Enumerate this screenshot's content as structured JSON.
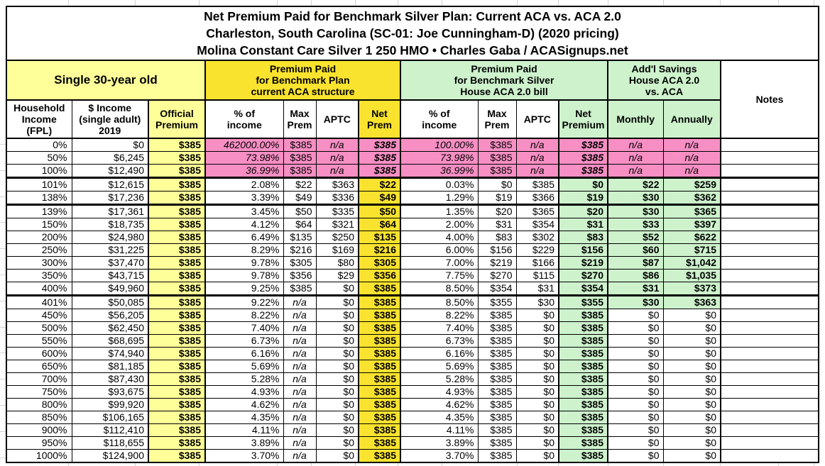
{
  "title": {
    "line1": "Net Premium Paid for Benchmark Silver Plan: Current ACA vs. ACA 2.0",
    "line2": "Charleston, South Carolina (SC-01: Joe Cunningham-D) (2020 pricing)",
    "line3": "Molina Constant Care Silver 1 250 HMO • Charles Gaba / ACASignups.net"
  },
  "groups": {
    "subject": "Single 30-year old",
    "aca": "Premium Paid\nfor Benchmark Plan\ncurrent ACA structure",
    "aca2": "Premium Paid\nfor Benchmark Silver\nHouse ACA 2.0 bill",
    "savings": "Add'l Savings\nHouse ACA 2.0\nvs. ACA",
    "notes": "Notes"
  },
  "columns": {
    "fpl": "Household\nIncome\n(FPL)",
    "income": "$ Income\n(single adult)\n2019",
    "official": "Official\nPremium",
    "aca_pct": "% of\nincome",
    "aca_max": "Max\nPrem",
    "aca_aptc": "APTC",
    "aca_net": "Net\nPrem",
    "aca2_pct": "% of\nincome",
    "aca2_max": "Max\nPrem",
    "aca2_aptc": "APTC",
    "aca2_net": "Net\nPremium",
    "monthly": "Monthly",
    "annually": "Annually"
  },
  "colors": {
    "pale_yellow": "#FFFF99",
    "bright_yellow": "#F9E32E",
    "light_green": "#CDF2CC",
    "pink": "#F78FC4",
    "border": "#000000",
    "gridline": "#d4d4d4"
  },
  "table": {
    "rows": [
      {
        "fpl": "0%",
        "inc": "$0",
        "off": "$385",
        "a": [
          "462000.00%",
          "$385",
          "n/a",
          "$385"
        ],
        "b": [
          "100.00%",
          "$385",
          "n/a",
          "$385"
        ],
        "m": "n/a",
        "y": "n/a",
        "pink": true
      },
      {
        "fpl": "50%",
        "inc": "$6,245",
        "off": "$385",
        "a": [
          "73.98%",
          "$385",
          "n/a",
          "$385"
        ],
        "b": [
          "73.98%",
          "$385",
          "n/a",
          "$385"
        ],
        "m": "n/a",
        "y": "n/a",
        "pink": true
      },
      {
        "fpl": "100%",
        "inc": "$12,490",
        "off": "$385",
        "a": [
          "36.99%",
          "$385",
          "n/a",
          "$385"
        ],
        "b": [
          "36.99%",
          "$385",
          "n/a",
          "$385"
        ],
        "m": "n/a",
        "y": "n/a",
        "pink": true,
        "thick": true
      },
      {
        "fpl": "101%",
        "inc": "$12,615",
        "off": "$385",
        "a": [
          "2.08%",
          "$22",
          "$363",
          "$22"
        ],
        "b": [
          "0.03%",
          "$0",
          "$385",
          "$0"
        ],
        "m": "$22",
        "y": "$259",
        "sv": true
      },
      {
        "fpl": "138%",
        "inc": "$17,236",
        "off": "$385",
        "a": [
          "3.39%",
          "$49",
          "$336",
          "$49"
        ],
        "b": [
          "1.29%",
          "$19",
          "$366",
          "$19"
        ],
        "m": "$30",
        "y": "$362",
        "sv": true,
        "thick": true
      },
      {
        "fpl": "139%",
        "inc": "$17,361",
        "off": "$385",
        "a": [
          "3.45%",
          "$50",
          "$335",
          "$50"
        ],
        "b": [
          "1.35%",
          "$20",
          "$365",
          "$20"
        ],
        "m": "$30",
        "y": "$365",
        "sv": true
      },
      {
        "fpl": "150%",
        "inc": "$18,735",
        "off": "$385",
        "a": [
          "4.12%",
          "$64",
          "$321",
          "$64"
        ],
        "b": [
          "2.00%",
          "$31",
          "$354",
          "$31"
        ],
        "m": "$33",
        "y": "$397",
        "sv": true
      },
      {
        "fpl": "200%",
        "inc": "$24,980",
        "off": "$385",
        "a": [
          "6.49%",
          "$135",
          "$250",
          "$135"
        ],
        "b": [
          "4.00%",
          "$83",
          "$302",
          "$83"
        ],
        "m": "$52",
        "y": "$622",
        "sv": true
      },
      {
        "fpl": "250%",
        "inc": "$31,225",
        "off": "$385",
        "a": [
          "8.29%",
          "$216",
          "$169",
          "$216"
        ],
        "b": [
          "6.00%",
          "$156",
          "$229",
          "$156"
        ],
        "m": "$60",
        "y": "$715",
        "sv": true
      },
      {
        "fpl": "300%",
        "inc": "$37,470",
        "off": "$385",
        "a": [
          "9.78%",
          "$305",
          "$80",
          "$305"
        ],
        "b": [
          "7.00%",
          "$219",
          "$166",
          "$219"
        ],
        "m": "$87",
        "y": "$1,042",
        "sv": true
      },
      {
        "fpl": "350%",
        "inc": "$43,715",
        "off": "$385",
        "a": [
          "9.78%",
          "$356",
          "$29",
          "$356"
        ],
        "b": [
          "7.75%",
          "$270",
          "$115",
          "$270"
        ],
        "m": "$86",
        "y": "$1,035",
        "sv": true
      },
      {
        "fpl": "400%",
        "inc": "$49,960",
        "off": "$385",
        "a": [
          "9.25%",
          "$385",
          "$0",
          "$385"
        ],
        "b": [
          "8.50%",
          "$354",
          "$31",
          "$354"
        ],
        "m": "$31",
        "y": "$373",
        "sv": true,
        "thick": true
      },
      {
        "fpl": "401%",
        "inc": "$50,085",
        "off": "$385",
        "a": [
          "9.22%",
          "n/a",
          "$0",
          "$385"
        ],
        "b": [
          "8.50%",
          "$355",
          "$30",
          "$355"
        ],
        "m": "$30",
        "y": "$363",
        "sv": true
      },
      {
        "fpl": "450%",
        "inc": "$56,205",
        "off": "$385",
        "a": [
          "8.22%",
          "n/a",
          "$0",
          "$385"
        ],
        "b": [
          "8.22%",
          "$385",
          "$0",
          "$385"
        ],
        "m": "$0",
        "y": "$0"
      },
      {
        "fpl": "500%",
        "inc": "$62,450",
        "off": "$385",
        "a": [
          "7.40%",
          "n/a",
          "$0",
          "$385"
        ],
        "b": [
          "7.40%",
          "$385",
          "$0",
          "$385"
        ],
        "m": "$0",
        "y": "$0"
      },
      {
        "fpl": "550%",
        "inc": "$68,695",
        "off": "$385",
        "a": [
          "6.73%",
          "n/a",
          "$0",
          "$385"
        ],
        "b": [
          "6.73%",
          "$385",
          "$0",
          "$385"
        ],
        "m": "$0",
        "y": "$0"
      },
      {
        "fpl": "600%",
        "inc": "$74,940",
        "off": "$385",
        "a": [
          "6.16%",
          "n/a",
          "$0",
          "$385"
        ],
        "b": [
          "6.16%",
          "$385",
          "$0",
          "$385"
        ],
        "m": "$0",
        "y": "$0"
      },
      {
        "fpl": "650%",
        "inc": "$81,185",
        "off": "$385",
        "a": [
          "5.69%",
          "n/a",
          "$0",
          "$385"
        ],
        "b": [
          "5.69%",
          "$385",
          "$0",
          "$385"
        ],
        "m": "$0",
        "y": "$0"
      },
      {
        "fpl": "700%",
        "inc": "$87,430",
        "off": "$385",
        "a": [
          "5.28%",
          "n/a",
          "$0",
          "$385"
        ],
        "b": [
          "5.28%",
          "$385",
          "$0",
          "$385"
        ],
        "m": "$0",
        "y": "$0"
      },
      {
        "fpl": "750%",
        "inc": "$93,675",
        "off": "$385",
        "a": [
          "4.93%",
          "n/a",
          "$0",
          "$385"
        ],
        "b": [
          "4.93%",
          "$385",
          "$0",
          "$385"
        ],
        "m": "$0",
        "y": "$0"
      },
      {
        "fpl": "800%",
        "inc": "$99,920",
        "off": "$385",
        "a": [
          "4.62%",
          "n/a",
          "$0",
          "$385"
        ],
        "b": [
          "4.62%",
          "$385",
          "$0",
          "$385"
        ],
        "m": "$0",
        "y": "$0"
      },
      {
        "fpl": "850%",
        "inc": "$106,165",
        "off": "$385",
        "a": [
          "4.35%",
          "n/a",
          "$0",
          "$385"
        ],
        "b": [
          "4.35%",
          "$385",
          "$0",
          "$385"
        ],
        "m": "$0",
        "y": "$0"
      },
      {
        "fpl": "900%",
        "inc": "$112,410",
        "off": "$385",
        "a": [
          "4.11%",
          "n/a",
          "$0",
          "$385"
        ],
        "b": [
          "4.11%",
          "$385",
          "$0",
          "$385"
        ],
        "m": "$0",
        "y": "$0"
      },
      {
        "fpl": "950%",
        "inc": "$118,655",
        "off": "$385",
        "a": [
          "3.89%",
          "n/a",
          "$0",
          "$385"
        ],
        "b": [
          "3.89%",
          "$385",
          "$0",
          "$385"
        ],
        "m": "$0",
        "y": "$0"
      },
      {
        "fpl": "1000%",
        "inc": "$124,900",
        "off": "$385",
        "a": [
          "3.70%",
          "n/a",
          "$0",
          "$385"
        ],
        "b": [
          "3.70%",
          "$385",
          "$0",
          "$385"
        ],
        "m": "$0",
        "y": "$0"
      }
    ]
  }
}
